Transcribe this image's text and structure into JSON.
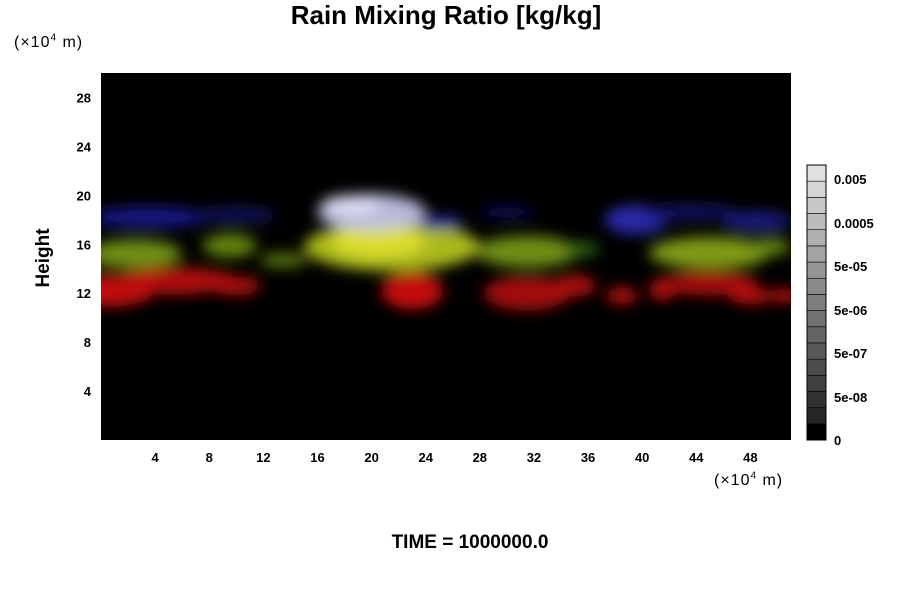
{
  "chart_data": {
    "type": "heatmap",
    "title": "Rain Mixing Ratio [kg/kg]",
    "ylabel": "Height",
    "xlabel": "",
    "x_unit": {
      "prefix": "(×10",
      "exp": "4",
      "suffix": " m)"
    },
    "y_unit": {
      "prefix": "(×10",
      "exp": "4",
      "suffix": " m)"
    },
    "xlim": [
      0,
      51
    ],
    "ylim": [
      0,
      30
    ],
    "x_ticks": [
      4,
      8,
      12,
      16,
      20,
      24,
      28,
      32,
      36,
      40,
      44,
      48
    ],
    "y_ticks": [
      4,
      8,
      12,
      16,
      20,
      24,
      28
    ],
    "colorbar": {
      "labels": [
        "0.005",
        "0.0005",
        "5e-05",
        "5e-06",
        "5e-07",
        "5e-08",
        "0"
      ],
      "levels": 17
    },
    "features": [
      {
        "layer": "red",
        "color": "#d01010",
        "x": 0.5,
        "y": 12.2,
        "rx": 3.5,
        "ry": 1.3
      },
      {
        "layer": "red",
        "color": "#c00c0c",
        "x": 5.5,
        "y": 13.0,
        "rx": 4.5,
        "ry": 1.1
      },
      {
        "layer": "red",
        "color": "#b80a0a",
        "x": 10.0,
        "y": 12.6,
        "rx": 1.8,
        "ry": 0.8
      },
      {
        "layer": "red",
        "color": "#d51212",
        "x": 23.0,
        "y": 12.2,
        "rx": 2.3,
        "ry": 1.5
      },
      {
        "layer": "red",
        "color": "#b00a0a",
        "x": 31.5,
        "y": 12.0,
        "rx": 3.2,
        "ry": 1.4
      },
      {
        "layer": "red",
        "color": "#b80a0a",
        "x": 35.0,
        "y": 12.6,
        "rx": 1.6,
        "ry": 0.9
      },
      {
        "layer": "red",
        "color": "#c00c0c",
        "x": 38.5,
        "y": 11.8,
        "rx": 1.2,
        "ry": 0.7
      },
      {
        "layer": "red",
        "color": "#c00c0c",
        "x": 41.5,
        "y": 12.3,
        "rx": 1.0,
        "ry": 0.9
      },
      {
        "layer": "red",
        "color": "#b40a0a",
        "x": 45.0,
        "y": 12.8,
        "rx": 3.5,
        "ry": 1.0
      },
      {
        "layer": "red",
        "color": "#c81010",
        "x": 48.0,
        "y": 11.8,
        "rx": 1.6,
        "ry": 0.7
      },
      {
        "layer": "red",
        "color": "#c81010",
        "x": 50.5,
        "y": 11.8,
        "rx": 1.0,
        "ry": 0.6
      },
      {
        "layer": "green",
        "color": "#7a9a18",
        "x": 2.5,
        "y": 15.2,
        "rx": 3.5,
        "ry": 1.2
      },
      {
        "layer": "green",
        "color": "#6a8c12",
        "x": 9.5,
        "y": 15.9,
        "rx": 2.0,
        "ry": 1.0
      },
      {
        "layer": "green",
        "color": "#5f7e12",
        "x": 13.5,
        "y": 14.7,
        "rx": 1.8,
        "ry": 0.6
      },
      {
        "layer": "green",
        "color": "#b8c820",
        "x": 21.5,
        "y": 15.8,
        "rx": 6.5,
        "ry": 2.0
      },
      {
        "layer": "green",
        "color": "#e0e030",
        "x": 20.5,
        "y": 16.2,
        "rx": 3.5,
        "ry": 1.3
      },
      {
        "layer": "green",
        "color": "#7a9a18",
        "x": 31.5,
        "y": 15.4,
        "rx": 3.8,
        "ry": 1.3
      },
      {
        "layer": "green",
        "color": "#2f6a18",
        "x": 35.5,
        "y": 15.6,
        "rx": 1.3,
        "ry": 0.6
      },
      {
        "layer": "green",
        "color": "#8aa818",
        "x": 45.0,
        "y": 15.3,
        "rx": 4.5,
        "ry": 1.3
      },
      {
        "layer": "green",
        "color": "#6a8c12",
        "x": 49.5,
        "y": 15.8,
        "rx": 1.5,
        "ry": 0.7
      },
      {
        "layer": "blue",
        "color": "#1a1a8a",
        "x": 3.5,
        "y": 18.2,
        "rx": 4.5,
        "ry": 0.9
      },
      {
        "layer": "blue",
        "color": "#14146a",
        "x": 10.0,
        "y": 18.4,
        "rx": 3.0,
        "ry": 0.6
      },
      {
        "layer": "blue",
        "color": "#101060",
        "x": 30.0,
        "y": 18.6,
        "rx": 2.0,
        "ry": 0.5
      },
      {
        "layer": "blue",
        "color": "#2a2ab8",
        "x": 39.5,
        "y": 18.0,
        "rx": 2.3,
        "ry": 1.2
      },
      {
        "layer": "blue",
        "color": "#161670",
        "x": 43.5,
        "y": 18.6,
        "rx": 3.5,
        "ry": 0.6
      },
      {
        "layer": "blue",
        "color": "#1e1e8c",
        "x": 48.5,
        "y": 17.9,
        "rx": 2.5,
        "ry": 0.8
      },
      {
        "layer": "blue",
        "color": "#2222a0",
        "x": 25.0,
        "y": 17.8,
        "rx": 1.8,
        "ry": 0.6
      },
      {
        "layer": "white",
        "color": "#c8c8ec",
        "x": 20.0,
        "y": 18.6,
        "rx": 4.0,
        "ry": 1.5
      },
      {
        "layer": "white",
        "color": "#e0e0f6",
        "x": 18.5,
        "y": 19.2,
        "rx": 2.2,
        "ry": 0.8
      }
    ]
  },
  "footer": {
    "time_label": "TIME = 1000000.0"
  }
}
